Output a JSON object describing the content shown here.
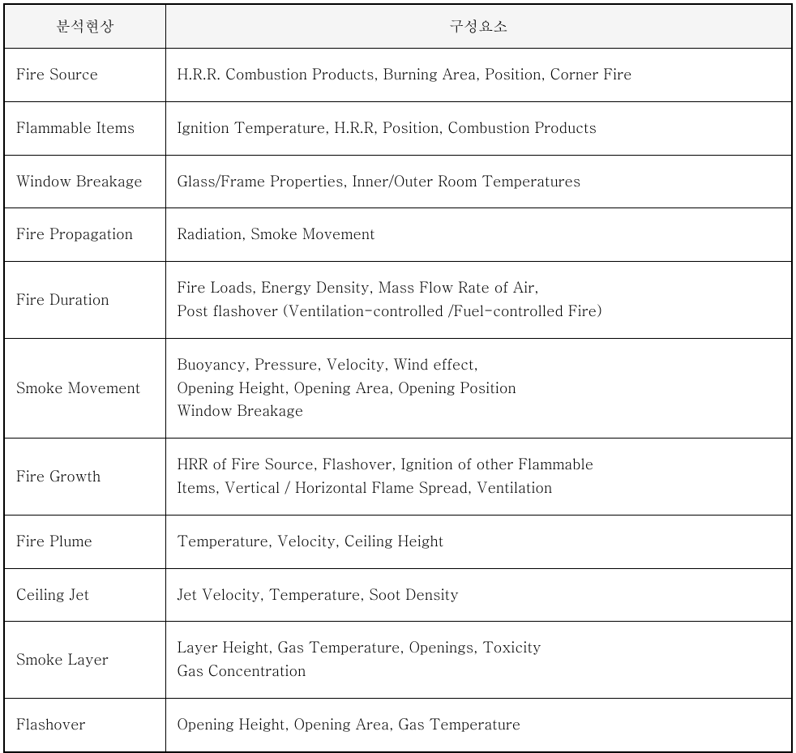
{
  "table": {
    "columns": [
      "분석현상",
      "구성요소"
    ],
    "rows": [
      {
        "phenomenon": "Fire Source",
        "components": "H.R.R. Combustion Products, Burning Area, Position, Corner Fire"
      },
      {
        "phenomenon": "Flammable Items",
        "components": "Ignition Temperature, H.R.R, Position, Combustion Products"
      },
      {
        "phenomenon": "Window Breakage",
        "components": "Glass/Frame Properties, Inner/Outer Room Temperatures"
      },
      {
        "phenomenon": "Fire Propagation",
        "components": "Radiation, Smoke Movement"
      },
      {
        "phenomenon": "Fire Duration",
        "components": "Fire Loads, Energy Density, Mass Flow Rate of Air,\nPost flashover (Ventilation-controlled /Fuel-controlled Fire)"
      },
      {
        "phenomenon": "Smoke Movement",
        "components": "Buoyancy, Pressure, Velocity, Wind effect,\nOpening Height, Opening Area, Opening Position\nWindow Breakage"
      },
      {
        "phenomenon": "Fire Growth",
        "components": "HRR of Fire Source, Flashover, Ignition of other  Flammable\nItems, Vertical / Horizontal Flame Spread, Ventilation"
      },
      {
        "phenomenon": "Fire Plume",
        "components": "Temperature, Velocity, Ceiling Height"
      },
      {
        "phenomenon": "Ceiling Jet",
        "components": "Jet Velocity, Temperature, Soot Density"
      },
      {
        "phenomenon": "Smoke Layer",
        "components": "Layer Height, Gas Temperature, Openings, Toxicity\nGas Concentration"
      },
      {
        "phenomenon": "Flashover",
        "components": "Opening Height, Opening Area, Gas Temperature"
      }
    ],
    "header_background": "#f5f5f5",
    "border_color": "#000000",
    "font_size": 18,
    "col1_width": 198
  }
}
